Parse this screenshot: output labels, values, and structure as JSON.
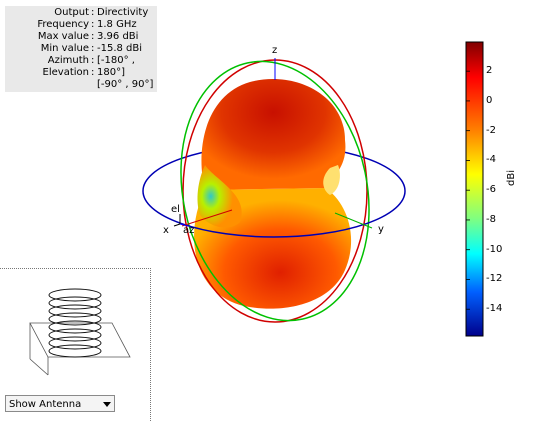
{
  "info": [
    {
      "key": "Output",
      "value": "Directivity"
    },
    {
      "key": "Frequency",
      "value": "1.8 GHz"
    },
    {
      "key": "Max value",
      "value": "3.96 dBi"
    },
    {
      "key": "Min value",
      "value": "-15.8 dBi"
    },
    {
      "key": "Azimuth",
      "value": "[-180° ,"
    },
    {
      "key": "Elevation",
      "value": "180°]"
    },
    {
      "key": "",
      "value": "[-90° , 90°]"
    }
  ],
  "axes": {
    "z": "z",
    "x": "x",
    "y": "y",
    "el": "el",
    "az": "az"
  },
  "colorbar": {
    "unit": "dBi",
    "ticks": [
      "2",
      "0",
      "-2",
      "-4",
      "-6",
      "-8",
      "-10",
      "-12",
      "-14"
    ],
    "min": -15.8,
    "max": 3.96
  },
  "view_select": {
    "value": "Show Antenna"
  },
  "colors": {
    "high": "#a50000",
    "mid": "#ff8c00",
    "low": "#00008b",
    "azimuth_ring": "#0000b4",
    "elevation_ring_1": "#d00000",
    "elevation_ring_2": "#00c000"
  }
}
